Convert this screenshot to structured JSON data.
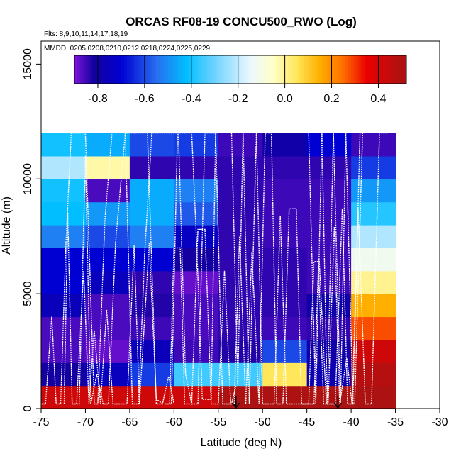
{
  "chart_data": {
    "type": "heatmap",
    "title": "ORCAS RF08-19 CONCU500_RWO (Log)",
    "flights_label": "Flts: 8,9,10,11,14,17,18,19",
    "dates_label": "MMDD: 0205,0208,0210,0212,0218,0224,0225,0229",
    "xlabel": "Latitude (deg N)",
    "ylabel": "Altitude (m)",
    "xlim": [
      -75,
      -30
    ],
    "ylim": [
      0,
      16000
    ],
    "xticks": [
      "-75",
      "-70",
      "-65",
      "-60",
      "-55",
      "-50",
      "-45",
      "-40",
      "-35",
      "-30"
    ],
    "yticks": [
      "0",
      "5000",
      "10000",
      "15000"
    ],
    "colorbar": {
      "range": [
        -0.9,
        0.52
      ],
      "ticks": [
        "-0.8",
        "-0.6",
        "-0.4",
        "-0.2",
        "0.0",
        "0.2",
        "0.4"
      ],
      "tick_values": [
        -0.8,
        -0.6,
        -0.4,
        -0.2,
        0.0,
        0.2,
        0.4
      ]
    },
    "x_bins": [
      -75,
      -70,
      -65,
      -60,
      -55,
      -50,
      -45,
      -40,
      -35
    ],
    "alt_bins": [
      0,
      1000,
      2000,
      3000,
      4000,
      5000,
      6000,
      7000,
      8000,
      9000,
      10000,
      11000,
      12000
    ],
    "cells": [
      [
        0.42,
        0.42,
        0.42,
        0.42,
        0.5,
        0.5,
        0.5,
        0.5
      ],
      [
        -0.82,
        -0.75,
        -0.62,
        -0.35,
        -0.35,
        0.05,
        -0.78,
        0.48
      ],
      [
        -0.86,
        -0.88,
        -0.76,
        -0.85,
        -0.83,
        -0.6,
        -0.8,
        0.42
      ],
      [
        -0.86,
        -0.86,
        -0.85,
        -0.86,
        -0.84,
        -0.85,
        -0.84,
        0.28
      ],
      [
        -0.76,
        -0.86,
        -0.83,
        -0.86,
        -0.84,
        -0.84,
        -0.8,
        0.15
      ],
      [
        -0.7,
        -0.75,
        -0.84,
        -0.88,
        -0.84,
        -0.84,
        -0.85,
        0.0
      ],
      [
        -0.7,
        -0.7,
        -0.7,
        -0.82,
        -0.84,
        -0.84,
        -0.85,
        -0.12
      ],
      [
        -0.52,
        -0.6,
        -0.52,
        -0.74,
        -0.84,
        -0.85,
        -0.85,
        -0.22
      ],
      [
        -0.42,
        -0.48,
        -0.45,
        -0.58,
        -0.84,
        -0.85,
        -0.85,
        -0.38
      ],
      [
        -0.4,
        -0.86,
        -0.45,
        -0.52,
        -0.84,
        -0.85,
        -0.85,
        -0.48
      ],
      [
        -0.22,
        -0.02,
        -0.84,
        -0.84,
        -0.84,
        -0.84,
        -0.84,
        -0.62
      ],
      [
        -0.4,
        -0.45,
        -0.6,
        -0.62,
        -0.85,
        -0.8,
        -0.7,
        -0.85
      ]
    ],
    "arrows_at_lat": [
      -53,
      -41.5
    ],
    "flight_tracks": [
      [
        [
          -75,
          200
        ],
        [
          -74.5,
          200
        ],
        [
          -73.8,
          4000
        ],
        [
          -73.3,
          200
        ],
        [
          -72.8,
          200
        ],
        [
          -72.2,
          7200
        ],
        [
          -71.6,
          12000
        ],
        [
          -70,
          12000
        ],
        [
          -69,
          200
        ],
        [
          -68.6,
          200
        ],
        [
          -67.8,
          8200
        ],
        [
          -67,
          12000
        ]
      ],
      [
        [
          -72.4,
          200
        ],
        [
          -72,
          8500
        ],
        [
          -71.5,
          200
        ],
        [
          -70.7,
          200
        ],
        [
          -70,
          11000
        ],
        [
          -69.4,
          200
        ],
        [
          -68.7,
          1500
        ],
        [
          -68,
          200
        ],
        [
          -67.4,
          200
        ],
        [
          -66.6,
          7200
        ],
        [
          -65.5,
          12000
        ],
        [
          -63,
          12000
        ],
        [
          -62,
          200
        ],
        [
          -61.3,
          200
        ],
        [
          -60.6,
          1400
        ],
        [
          -60,
          200
        ]
      ],
      [
        [
          -65.5,
          12000
        ],
        [
          -64.7,
          200
        ],
        [
          -64,
          200
        ],
        [
          -63.3,
          6800
        ],
        [
          -62.5,
          12000
        ],
        [
          -59.5,
          12000
        ],
        [
          -58.7,
          1500
        ],
        [
          -58,
          200
        ],
        [
          -57.3,
          200
        ],
        [
          -56.5,
          12000
        ],
        [
          -55,
          12000
        ]
      ],
      [
        [
          -71,
          200
        ],
        [
          -70.2,
          6000
        ],
        [
          -69.6,
          200
        ],
        [
          -69,
          3400
        ],
        [
          -68.3,
          200
        ],
        [
          -67.6,
          4300
        ],
        [
          -66.9,
          200
        ],
        [
          -65.3,
          200
        ],
        [
          -64.5,
          7100
        ],
        [
          -63.9,
          200
        ],
        [
          -62.8,
          7200
        ],
        [
          -62,
          400
        ],
        [
          -61.2,
          200
        ]
      ],
      [
        [
          -61,
          200
        ],
        [
          -60.3,
          200
        ],
        [
          -59.6,
          12000
        ],
        [
          -58,
          12000
        ],
        [
          -57.4,
          6800
        ],
        [
          -56.8,
          400
        ],
        [
          -55.8,
          400
        ],
        [
          -55.3,
          12000
        ],
        [
          -54.5,
          200
        ],
        [
          -53.5,
          200
        ],
        [
          -53,
          1000
        ]
      ],
      [
        [
          -60.5,
          200
        ],
        [
          -60,
          7000
        ],
        [
          -59.3,
          7000
        ],
        [
          -58.8,
          200
        ],
        [
          -58,
          200
        ],
        [
          -57.3,
          7800
        ],
        [
          -56.5,
          7800
        ],
        [
          -55.8,
          200
        ],
        [
          -55,
          200
        ],
        [
          -54.3,
          6000
        ],
        [
          -53.6,
          200
        ]
      ],
      [
        [
          -53.2,
          200
        ],
        [
          -52.6,
          7500
        ],
        [
          -51.9,
          200
        ],
        [
          -51.2,
          6800
        ],
        [
          -50.4,
          200
        ],
        [
          -49.7,
          12000
        ],
        [
          -49,
          12000
        ],
        [
          -48.4,
          200
        ],
        [
          -47.7,
          200
        ],
        [
          -47,
          8700
        ],
        [
          -46.2,
          8700
        ],
        [
          -45.6,
          200
        ],
        [
          -44.8,
          200
        ],
        [
          -44.2,
          6400
        ],
        [
          -43.6,
          6400
        ],
        [
          -42.8,
          200
        ],
        [
          -41.8,
          200
        ],
        [
          -41,
          8700
        ],
        [
          -40.4,
          200
        ],
        [
          -39.6,
          200
        ],
        [
          -38.7,
          12000
        ]
      ],
      [
        [
          -53.5,
          12000
        ],
        [
          -52.8,
          1000
        ],
        [
          -52.2,
          12000
        ],
        [
          -51.5,
          200
        ],
        [
          -50.7,
          12000
        ],
        [
          -50,
          200
        ],
        [
          -48.7,
          200
        ],
        [
          -48,
          8400
        ],
        [
          -47.3,
          200
        ],
        [
          -44.2,
          200
        ],
        [
          -43.7,
          6200
        ],
        [
          -43.1,
          200
        ],
        [
          -42.6,
          200
        ],
        [
          -41.9,
          7900
        ],
        [
          -41.3,
          200
        ],
        [
          -40.5,
          2200
        ],
        [
          -39.9,
          200
        ],
        [
          -39.2,
          8600
        ],
        [
          -38.4,
          200
        ],
        [
          -37.7,
          200
        ],
        [
          -36.8,
          12000
        ],
        [
          -36,
          12000
        ]
      ],
      [
        [
          -44.8,
          12000
        ],
        [
          -44,
          200
        ],
        [
          -43.3,
          12000
        ],
        [
          -42.7,
          200
        ],
        [
          -42,
          12000
        ],
        [
          -41.2,
          200
        ],
        [
          -40.6,
          12000
        ],
        [
          -39.8,
          200
        ],
        [
          -39,
          12000
        ],
        [
          -38.5,
          12000
        ]
      ]
    ]
  }
}
